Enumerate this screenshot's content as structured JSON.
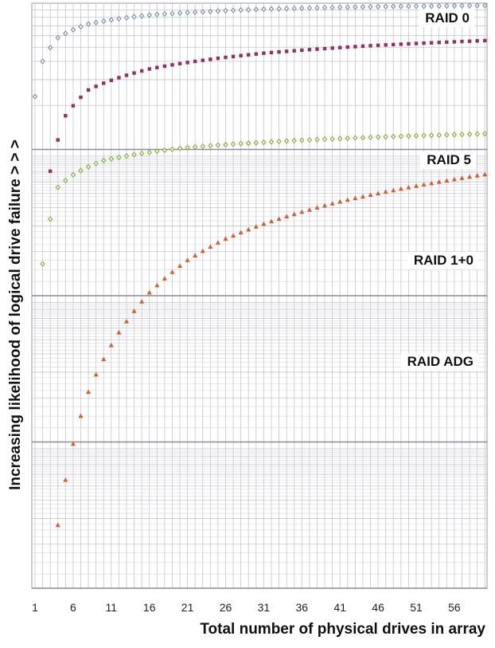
{
  "chart_data": {
    "type": "scatter",
    "title": "",
    "xlabel": "Total number of physical drives in array",
    "ylabel": "Increasing likelihood of logical drive failure > > >",
    "x_ticks": [
      "1",
      "6",
      "11",
      "16",
      "21",
      "26",
      "31",
      "36",
      "41",
      "46",
      "51",
      "56"
    ],
    "xlim": [
      1,
      60
    ],
    "y_scale": "log",
    "y_ticks_labeled": false,
    "grid": true,
    "legend": "labels placed beside each series",
    "series": [
      {
        "name": "RAID 0",
        "marker": "diamond",
        "color": "#8090b0",
        "x_start": 1,
        "x_end": 60,
        "points": [
          [
            1,
            0.23
          ],
          [
            2,
            0.4
          ],
          [
            4,
            0.58
          ],
          [
            8,
            0.72
          ],
          [
            16,
            0.83
          ],
          [
            31,
            0.91
          ],
          [
            45,
            0.945
          ],
          [
            60,
            0.965
          ]
        ]
      },
      {
        "name": "RAID 5",
        "marker": "square",
        "color": "#9a2e5a",
        "x_start": 3,
        "x_end": 60,
        "points": [
          [
            3,
            0.071
          ],
          [
            5,
            0.17
          ],
          [
            8,
            0.255
          ],
          [
            16,
            0.355
          ],
          [
            31,
            0.455
          ],
          [
            45,
            0.512
          ],
          [
            60,
            0.555
          ]
        ]
      },
      {
        "name": "RAID 1+0",
        "marker": "diamond",
        "color": "#88b040",
        "x_start": 2,
        "x_end": 60,
        "points": [
          [
            2,
            0.0165
          ],
          [
            4,
            0.055
          ],
          [
            6,
            0.067
          ],
          [
            10,
            0.084
          ],
          [
            21,
            0.103
          ],
          [
            31,
            0.112
          ],
          [
            45,
            0.121
          ],
          [
            60,
            0.128
          ]
        ]
      },
      {
        "name": "RAID ADG",
        "marker": "triangle",
        "color": "#e05828",
        "x_start": 4,
        "x_end": 60,
        "points": [
          [
            4,
            0.00027
          ],
          [
            5,
            0.00055
          ],
          [
            6,
            0.00097
          ],
          [
            8,
            0.0022
          ],
          [
            12,
            0.0056
          ],
          [
            16,
            0.0105
          ],
          [
            21,
            0.0175
          ],
          [
            26,
            0.0245
          ],
          [
            31,
            0.031
          ],
          [
            41,
            0.044
          ],
          [
            50,
            0.055
          ],
          [
            60,
            0.0675
          ]
        ]
      }
    ]
  }
}
